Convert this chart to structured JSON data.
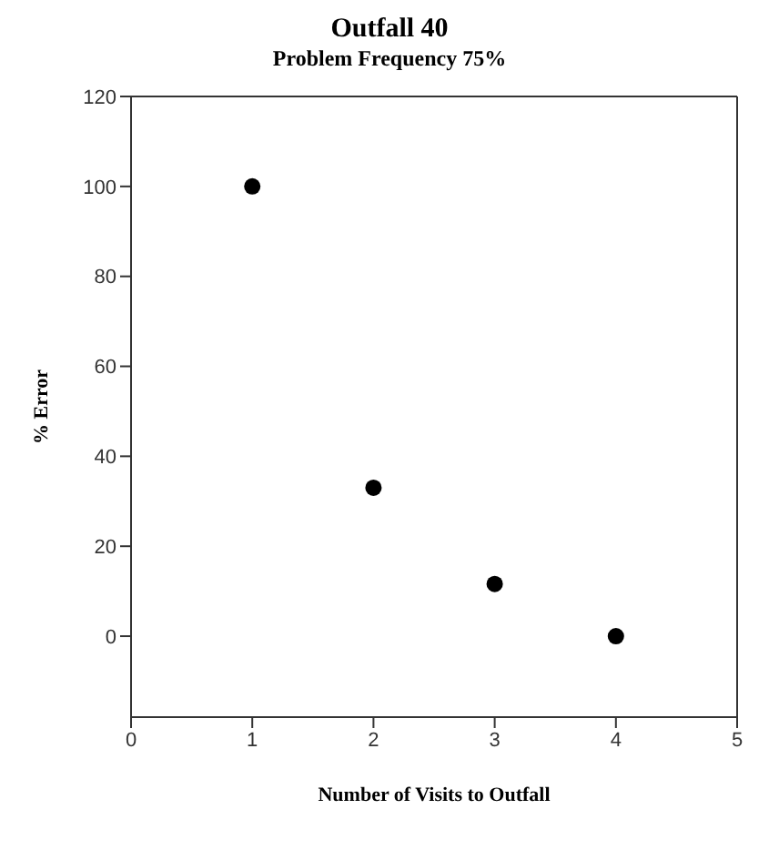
{
  "chart_data": {
    "type": "scatter",
    "title": "Outfall 40",
    "subtitle": "Problem Frequency 75%",
    "xlabel": "Number of Visits to Outfall",
    "ylabel": "% Error",
    "x": [
      1,
      2,
      3,
      4
    ],
    "values": [
      100,
      33,
      11.6,
      0
    ],
    "color": "#000000",
    "marker": "circle",
    "xlim": [
      0,
      5
    ],
    "xticks": [
      0,
      1,
      2,
      3,
      4,
      5
    ],
    "ylim": [
      -18,
      120
    ],
    "yticks": [
      0,
      20,
      40,
      60,
      80,
      100,
      120
    ]
  }
}
